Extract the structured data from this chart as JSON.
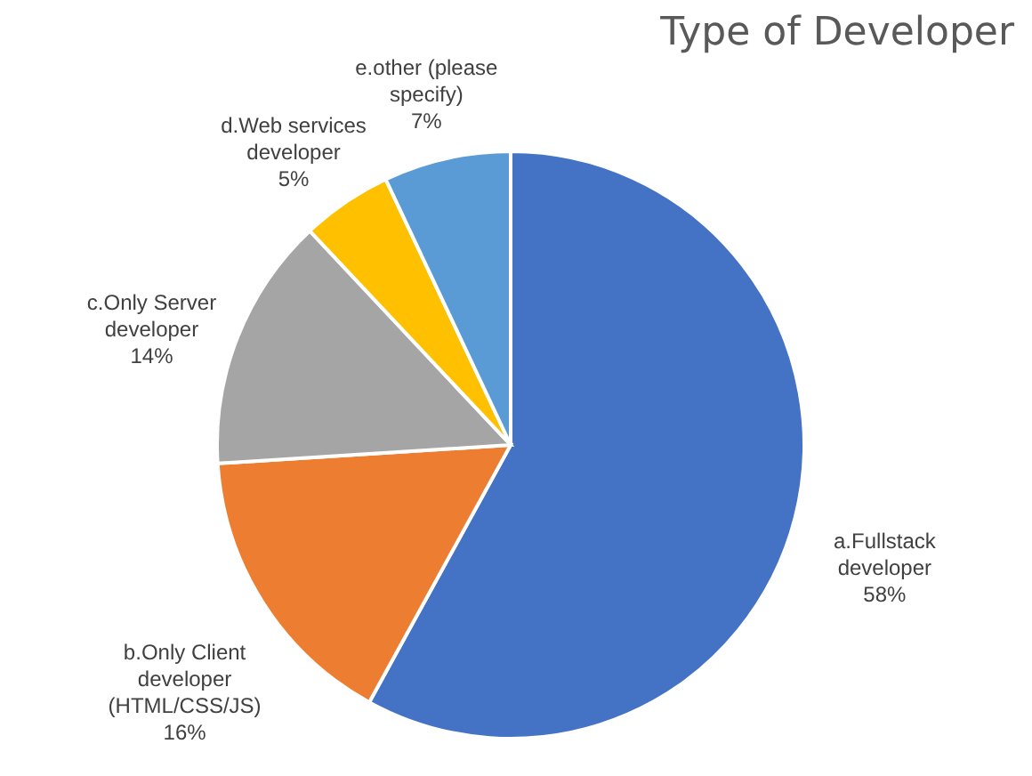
{
  "chart_data": {
    "type": "pie",
    "title": "Type of Developer",
    "categories": [
      "a.Fullstack developer",
      "b.Only Client developer (HTML/CSS/JS)",
      "c.Only Server developer",
      "d.Web services developer",
      "e.other (please specify)"
    ],
    "values": [
      58,
      16,
      14,
      5,
      7
    ],
    "colors": [
      "#4472c4",
      "#ed7d31",
      "#a5a5a5",
      "#ffc000",
      "#5b9bd5"
    ],
    "value_labels": [
      "58%",
      "16%",
      "14%",
      "5%",
      "7%"
    ],
    "legend": false
  }
}
